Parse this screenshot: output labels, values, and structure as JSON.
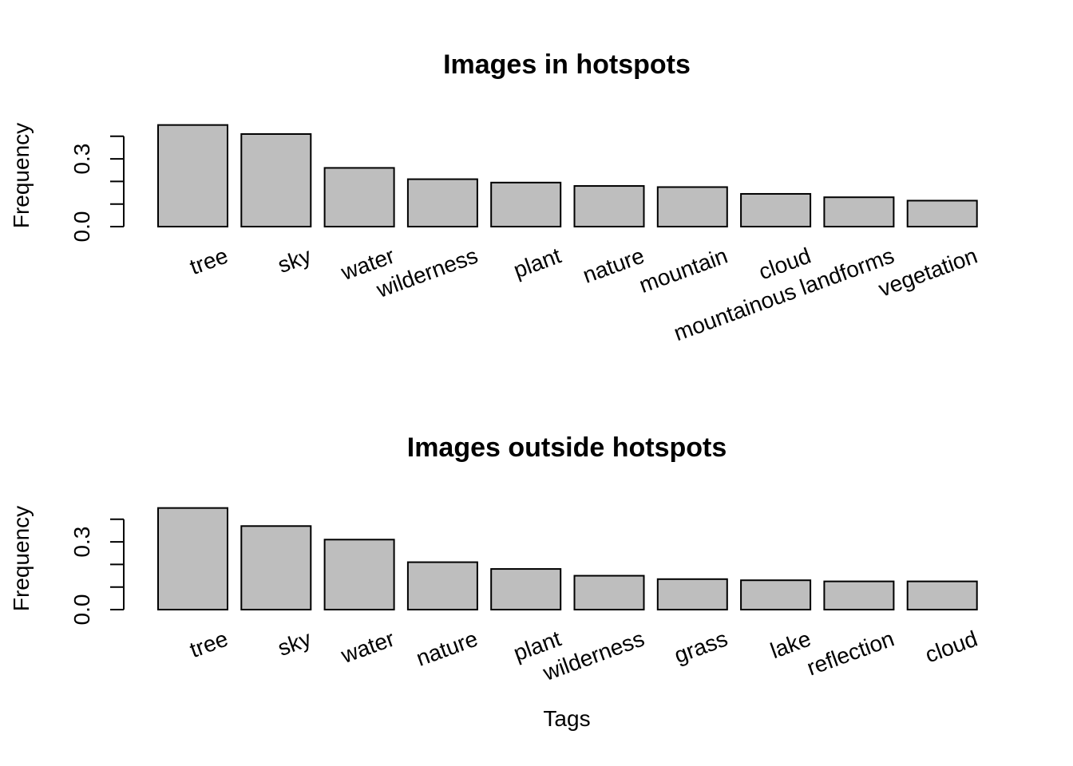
{
  "chart_data": [
    {
      "type": "bar",
      "title": "Images in hotspots",
      "xlabel": "",
      "ylabel": "Frequency",
      "ylim": [
        0,
        0.45
      ],
      "yticks": [
        0.0,
        0.1,
        0.2,
        0.3,
        0.4
      ],
      "ytick_labels": [
        "0.0",
        "",
        "",
        "0.3",
        ""
      ],
      "categories": [
        "tree",
        "sky",
        "water",
        "wilderness",
        "plant",
        "nature",
        "mountain",
        "cloud",
        "mountainous landforms",
        "vegetation"
      ],
      "values": [
        0.45,
        0.41,
        0.26,
        0.21,
        0.195,
        0.18,
        0.175,
        0.145,
        0.13,
        0.115
      ],
      "bar_color": "#bebebe"
    },
    {
      "type": "bar",
      "title": "Images outside hotspots",
      "xlabel": "Tags",
      "ylabel": "Frequency",
      "ylim": [
        0,
        0.45
      ],
      "yticks": [
        0.0,
        0.1,
        0.2,
        0.3,
        0.4
      ],
      "ytick_labels": [
        "0.0",
        "",
        "",
        "0.3",
        ""
      ],
      "categories": [
        "tree",
        "sky",
        "water",
        "nature",
        "plant",
        "wilderness",
        "grass",
        "lake",
        "reflection",
        "cloud"
      ],
      "values": [
        0.45,
        0.37,
        0.31,
        0.21,
        0.18,
        0.15,
        0.135,
        0.13,
        0.125,
        0.125
      ],
      "bar_color": "#bebebe"
    }
  ]
}
